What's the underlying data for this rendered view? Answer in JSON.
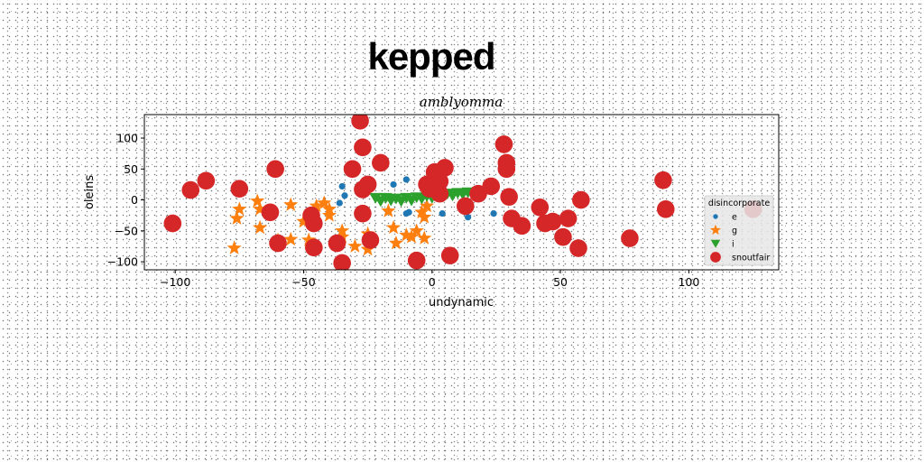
{
  "chart_data": {
    "type": "scatter",
    "title": "kepped",
    "subtitle": "amblyomma",
    "xlabel": "undynamic",
    "ylabel": "oleins",
    "xlim": [
      -112,
      135
    ],
    "ylim": [
      -113,
      138
    ],
    "xticks": [
      -100,
      -50,
      0,
      50,
      100
    ],
    "yticks": [
      -100,
      -50,
      0,
      50,
      100
    ],
    "xtick_labels": [
      "−100",
      "−50",
      "0",
      "50",
      "100"
    ],
    "ytick_labels": [
      "−100",
      "−50",
      "0",
      "50",
      "100"
    ],
    "grid": false,
    "legend": {
      "title": "disincorporate",
      "placement": "right"
    },
    "series": [
      {
        "name": "e",
        "marker": "circle-small",
        "color": "#1f77b4",
        "points": [
          [
            -35,
            22
          ],
          [
            -34,
            7
          ],
          [
            -36,
            -5
          ],
          [
            -15,
            25
          ],
          [
            -10,
            33
          ],
          [
            -10,
            -22
          ],
          [
            -9,
            -20
          ],
          [
            4,
            -22
          ],
          [
            14,
            -28
          ],
          [
            24,
            -22
          ]
        ]
      },
      {
        "name": "g",
        "marker": "star",
        "color": "#ff7f0e",
        "points": [
          [
            -77,
            -78
          ],
          [
            -76,
            -30
          ],
          [
            -75,
            -15
          ],
          [
            -68,
            -2
          ],
          [
            -67,
            -15
          ],
          [
            -67,
            -45
          ],
          [
            -60,
            -65
          ],
          [
            -55,
            -8
          ],
          [
            -55,
            -64
          ],
          [
            -50,
            -35
          ],
          [
            -48,
            -65
          ],
          [
            -45,
            -10
          ],
          [
            -42,
            -5
          ],
          [
            -40,
            -15
          ],
          [
            -40,
            -25
          ],
          [
            -35,
            -50
          ],
          [
            -35,
            -60
          ],
          [
            -30,
            -75
          ],
          [
            -25,
            -80
          ],
          [
            -25,
            -55
          ],
          [
            -17,
            -18
          ],
          [
            -15,
            -45
          ],
          [
            -14,
            -70
          ],
          [
            -10,
            -57
          ],
          [
            -8,
            -60
          ],
          [
            -6,
            -50
          ],
          [
            -4,
            -20
          ],
          [
            -3,
            -62
          ],
          [
            -3,
            -28
          ],
          [
            -2,
            -10
          ]
        ]
      },
      {
        "name": "i",
        "marker": "triangle-down",
        "color": "#2ca02c",
        "points": [
          [
            -22,
            3
          ],
          [
            -20,
            -2
          ],
          [
            -18,
            3
          ],
          [
            -16,
            -1
          ],
          [
            -14,
            2
          ],
          [
            -12,
            -2
          ],
          [
            -10,
            3
          ],
          [
            -8,
            -1
          ],
          [
            -6,
            4
          ],
          [
            -4,
            2
          ],
          [
            -2,
            6
          ],
          [
            0,
            3
          ],
          [
            2,
            8
          ],
          [
            4,
            5
          ],
          [
            6,
            10
          ],
          [
            8,
            7
          ],
          [
            10,
            11
          ],
          [
            12,
            9
          ],
          [
            14,
            12
          ],
          [
            16,
            10
          ],
          [
            18,
            13
          ]
        ]
      },
      {
        "name": "snoutfair",
        "marker": "circle-large",
        "color": "#d62728",
        "points": [
          [
            -101,
            -38
          ],
          [
            -94,
            16
          ],
          [
            -88,
            31
          ],
          [
            -75,
            18
          ],
          [
            -63,
            -20
          ],
          [
            -61,
            50
          ],
          [
            -60,
            -70
          ],
          [
            -47,
            -25
          ],
          [
            -46,
            -38
          ],
          [
            -46,
            -77
          ],
          [
            -37,
            -70
          ],
          [
            -35,
            -102
          ],
          [
            -31,
            50
          ],
          [
            -28,
            128
          ],
          [
            -27,
            85
          ],
          [
            -27,
            -22
          ],
          [
            -27,
            17
          ],
          [
            -25,
            25
          ],
          [
            -24,
            -65
          ],
          [
            -20,
            60
          ],
          [
            -6,
            -98
          ],
          [
            -2,
            25
          ],
          [
            -1,
            18
          ],
          [
            1,
            45
          ],
          [
            3,
            30
          ],
          [
            3,
            10
          ],
          [
            5,
            52
          ],
          [
            7,
            -90
          ],
          [
            13,
            -10
          ],
          [
            18,
            10
          ],
          [
            23,
            22
          ],
          [
            28,
            90
          ],
          [
            29,
            60
          ],
          [
            29,
            50
          ],
          [
            30,
            5
          ],
          [
            31,
            -30
          ],
          [
            35,
            -42
          ],
          [
            42,
            -12
          ],
          [
            44,
            -38
          ],
          [
            47,
            -35
          ],
          [
            51,
            -60
          ],
          [
            53,
            -30
          ],
          [
            57,
            -78
          ],
          [
            58,
            0
          ],
          [
            77,
            -62
          ],
          [
            90,
            32
          ],
          [
            91,
            -15
          ],
          [
            125,
            -15
          ]
        ]
      }
    ]
  }
}
